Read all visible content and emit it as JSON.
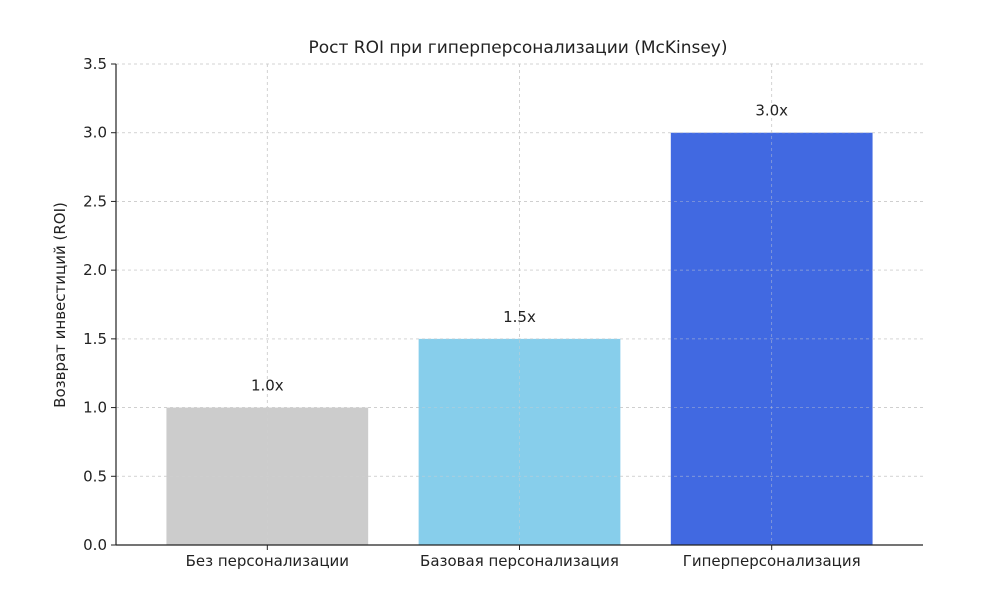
{
  "chart_data": {
    "type": "bar",
    "title": "Рост ROI при гиперперсонализации (McKinsey)",
    "xlabel": "",
    "ylabel": "Возврат инвестиций (ROI)",
    "categories": [
      "Без персонализации",
      "Базовая персонализация",
      "Гиперперсонализация"
    ],
    "values": [
      1.0,
      1.5,
      3.0
    ],
    "data_labels": [
      "1.0x",
      "1.5x",
      "3.0x"
    ],
    "colors": [
      "#cccccc",
      "#87ceeb",
      "#4169e1"
    ],
    "ylim": [
      0,
      3.5
    ],
    "yticks": [
      0.0,
      0.5,
      1.0,
      1.5,
      2.0,
      2.5,
      3.0,
      3.5
    ],
    "ytick_labels": [
      "0.0",
      "0.5",
      "1.0",
      "1.5",
      "2.0",
      "2.5",
      "3.0",
      "3.5"
    ],
    "grid": true
  }
}
